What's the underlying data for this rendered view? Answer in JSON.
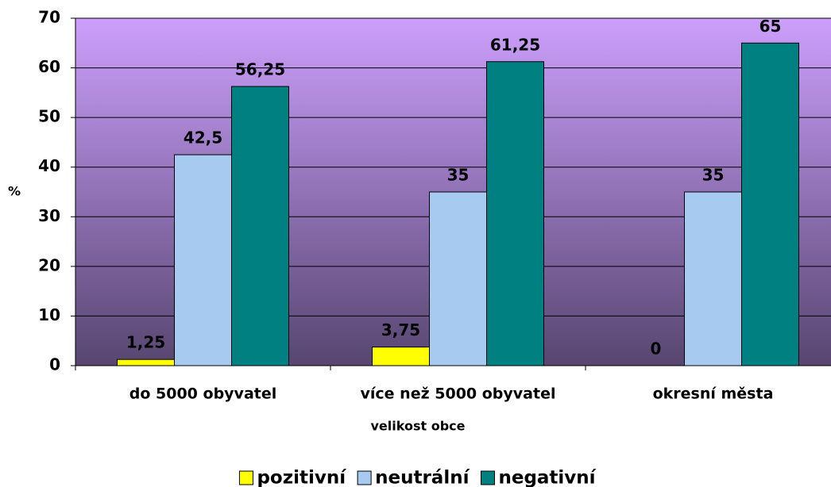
{
  "chart_data": {
    "type": "bar",
    "y_label": "%",
    "x_label": "velikost obce",
    "categories": [
      "do 5000 obyvatel",
      "více než 5000 obyvatel",
      "okresní města"
    ],
    "series": [
      {
        "name": "pozitivní",
        "color": "#ffff00",
        "values": [
          1.25,
          3.75,
          0
        ],
        "value_labels": [
          "1,25",
          "3,75",
          "0"
        ]
      },
      {
        "name": "neutrální",
        "color": "#a6caf0",
        "values": [
          42.5,
          35,
          35
        ],
        "value_labels": [
          "42,5",
          "35",
          "35"
        ]
      },
      {
        "name": "negativní",
        "color": "#008080",
        "values": [
          56.25,
          61.25,
          65
        ],
        "value_labels": [
          "56,25",
          "61,25",
          "65"
        ]
      }
    ],
    "ylim": [
      0,
      70
    ],
    "yticks": [
      0,
      10,
      20,
      30,
      40,
      50,
      60,
      70
    ],
    "grid": true,
    "legend": "bottom"
  }
}
